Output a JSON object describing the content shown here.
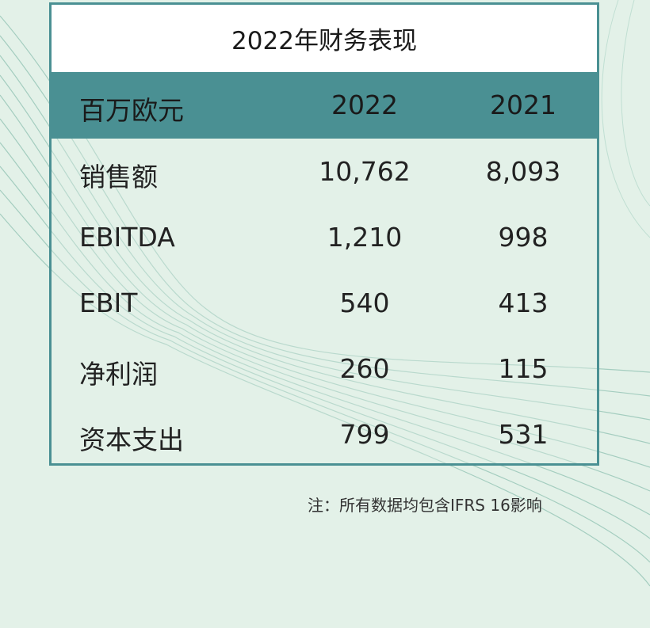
{
  "title": "2022年财务表现",
  "table": {
    "headers": [
      "百万欧元",
      "2022",
      "2021"
    ],
    "rows": [
      [
        "销售额",
        "10,762",
        "8,093"
      ],
      [
        "EBITDA",
        "1,210",
        "998"
      ],
      [
        "EBIT",
        "540",
        "413"
      ],
      [
        "净利润",
        "260",
        "115"
      ],
      [
        "资本支出",
        "799",
        "531"
      ]
    ]
  },
  "note": "注：所有数据均包含IFRS 16影响",
  "colors": {
    "background": "#e3f1e8",
    "accent": "#4a9093",
    "title_bg": "#ffffff"
  }
}
